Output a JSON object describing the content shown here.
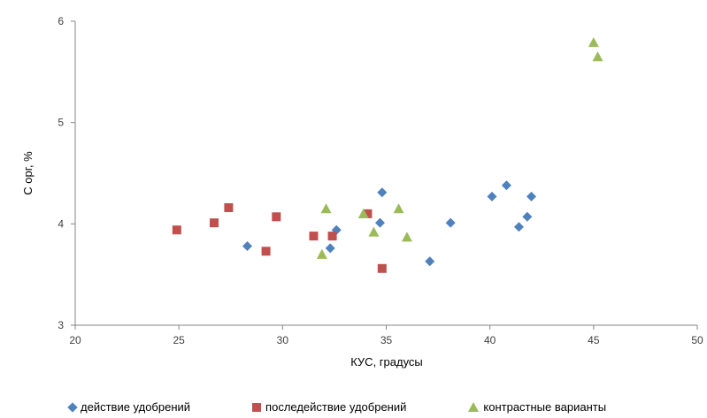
{
  "chart_data": {
    "type": "scatter",
    "title": "",
    "xlabel": "КУС, градусы",
    "ylabel": "С орг, %",
    "xlim": [
      20,
      50
    ],
    "ylim": [
      3,
      6
    ],
    "xticks": [
      "20",
      "25",
      "30",
      "35",
      "40",
      "45",
      "50"
    ],
    "yticks": [
      "3",
      "4",
      "5",
      "6"
    ],
    "grid": false,
    "legend_position": "bottom",
    "series": [
      {
        "name": "действие удобрений",
        "marker": "diamond",
        "color": "#4F81BD",
        "points": [
          [
            28.3,
            3.78
          ],
          [
            32.3,
            3.76
          ],
          [
            32.6,
            3.94
          ],
          [
            34.7,
            4.01
          ],
          [
            34.8,
            4.31
          ],
          [
            37.1,
            3.63
          ],
          [
            38.1,
            4.01
          ],
          [
            40.1,
            4.27
          ],
          [
            40.8,
            4.38
          ],
          [
            41.4,
            3.97
          ],
          [
            41.8,
            4.07
          ],
          [
            42.0,
            4.27
          ]
        ]
      },
      {
        "name": "последействие удобрений",
        "marker": "square",
        "color": "#C0504D",
        "points": [
          [
            24.9,
            3.94
          ],
          [
            26.7,
            4.01
          ],
          [
            27.4,
            4.16
          ],
          [
            29.2,
            3.73
          ],
          [
            29.7,
            4.07
          ],
          [
            31.5,
            3.88
          ],
          [
            32.4,
            3.88
          ],
          [
            34.1,
            4.1
          ],
          [
            34.8,
            3.56
          ]
        ]
      },
      {
        "name": "контрастные варианты",
        "marker": "triangle",
        "color": "#9BBB59",
        "points": [
          [
            31.9,
            3.7
          ],
          [
            32.1,
            4.15
          ],
          [
            33.9,
            4.1
          ],
          [
            34.4,
            3.92
          ],
          [
            35.6,
            4.15
          ],
          [
            36.0,
            3.87
          ],
          [
            45.0,
            5.79
          ],
          [
            45.2,
            5.65
          ]
        ]
      }
    ]
  }
}
